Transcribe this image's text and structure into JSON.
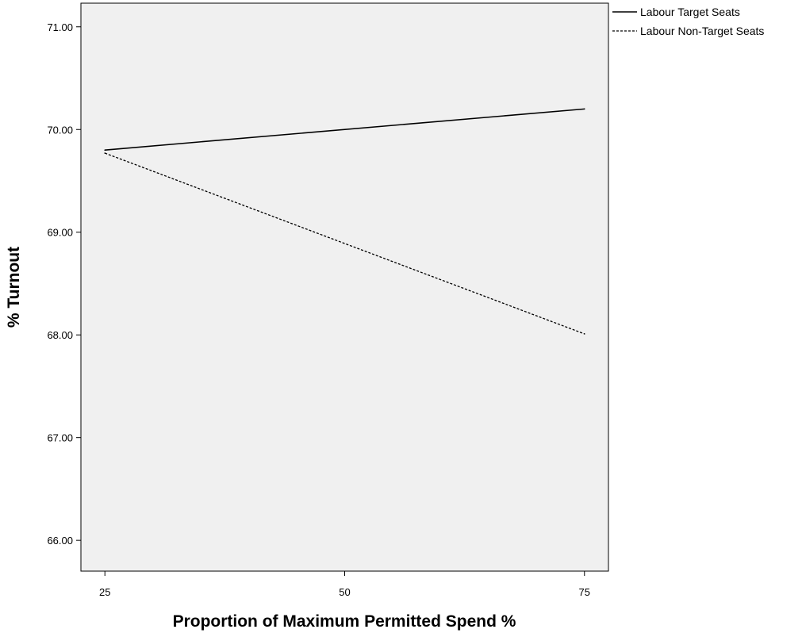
{
  "chart_data": {
    "type": "line",
    "title": "",
    "xlabel": "Proportion of Maximum Permitted Spend %",
    "ylabel": "% Turnout",
    "x": [
      25,
      75
    ],
    "x_ticks": [
      "25",
      "50",
      "75"
    ],
    "x_tick_values": [
      25,
      50,
      75
    ],
    "xlim": [
      22.5,
      77.5
    ],
    "y_ticks": [
      "66.00",
      "67.00",
      "68.00",
      "69.00",
      "70.00",
      "71.00"
    ],
    "y_tick_values": [
      66,
      67,
      68,
      69,
      70,
      71
    ],
    "ylim": [
      65.7,
      71.23
    ],
    "grid": false,
    "legend_position": "top-right, outside plot area",
    "plot_background": "#f0f0f0",
    "series": [
      {
        "name": "Labour Target Seats",
        "values": [
          69.8,
          70.2
        ],
        "line_style": "solid",
        "color": "#000000"
      },
      {
        "name": "Labour Non-Target Seats",
        "values": [
          69.77,
          68.01
        ],
        "line_style": "dashed",
        "color": "#000000"
      }
    ]
  }
}
